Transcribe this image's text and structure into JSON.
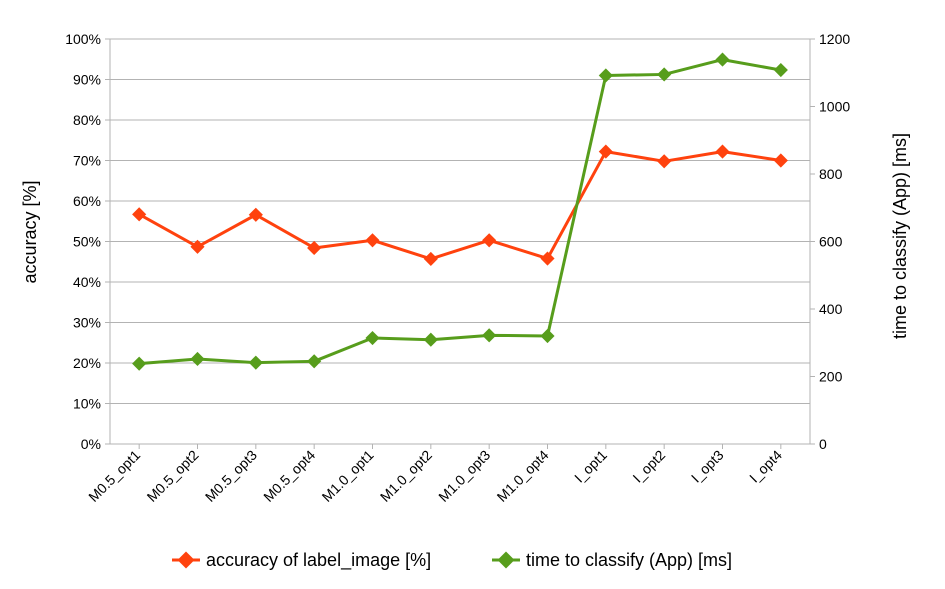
{
  "chart_data": {
    "type": "line",
    "categories": [
      "M0.5_opt1",
      "M0.5_opt2",
      "M0.5_opt3",
      "M0.5_opt4",
      "M1.0_opt1",
      "M1.0_opt2",
      "M1.0_opt3",
      "M1.0_opt4",
      "I_opt1",
      "I_opt2",
      "I_opt3",
      "I_opt4"
    ],
    "series": [
      {
        "name": "accuracy of label_image [%]",
        "axis": "left",
        "color": "#ff420e",
        "values": [
          0.567,
          0.487,
          0.566,
          0.484,
          0.503,
          0.457,
          0.503,
          0.458,
          0.722,
          0.698,
          0.722,
          0.7
        ]
      },
      {
        "name": "time to classify (App) [ms]",
        "axis": "right",
        "color": "#579d1c",
        "values": [
          238,
          252,
          241,
          245,
          314,
          309,
          322,
          320,
          1092,
          1095,
          1139,
          1108
        ]
      }
    ],
    "ylabel": "accuracy [%]",
    "ylabel_right": "time to classify (App) [ms]",
    "ylim": [
      0,
      1
    ],
    "ylim_right": [
      0,
      1200
    ],
    "yticks": [
      "0%",
      "10%",
      "20%",
      "30%",
      "40%",
      "50%",
      "60%",
      "70%",
      "80%",
      "90%",
      "100%"
    ],
    "yticks_right": [
      "0",
      "200",
      "400",
      "600",
      "800",
      "1000",
      "1200"
    ],
    "grid": true,
    "legend_position": "bottom"
  }
}
